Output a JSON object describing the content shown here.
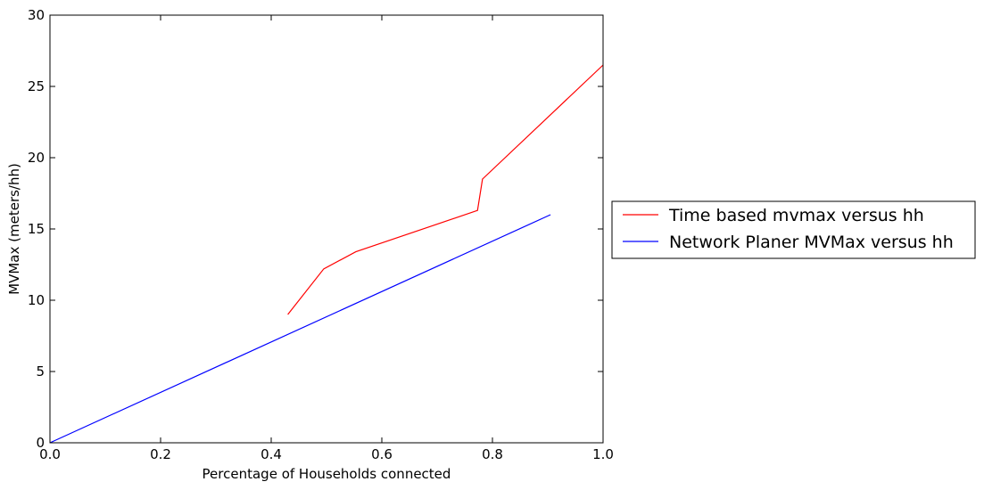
{
  "chart_data": {
    "type": "line",
    "title": "",
    "xlabel": "Percentage of Households connected",
    "ylabel": "MVMax (meters/hh)",
    "xlim": [
      0.0,
      1.0
    ],
    "ylim": [
      0,
      30
    ],
    "xticks": [
      0.0,
      0.2,
      0.4,
      0.6,
      0.8,
      1.0
    ],
    "xtick_labels": [
      "0.0",
      "0.2",
      "0.4",
      "0.6",
      "0.8",
      "1.0"
    ],
    "yticks": [
      0,
      5,
      10,
      15,
      20,
      25,
      30
    ],
    "ytick_labels": [
      "0",
      "5",
      "10",
      "15",
      "20",
      "25",
      "30"
    ],
    "grid": false,
    "legend_position": "outside-right",
    "series": [
      {
        "name": "Time based mvmax versus hh",
        "color": "#ff0000",
        "x": [
          0.43,
          0.495,
          0.553,
          0.773,
          0.782,
          1.0
        ],
        "y": [
          9.0,
          12.2,
          13.4,
          16.3,
          18.5,
          26.5
        ]
      },
      {
        "name": "Network Planer MVMax versus hh",
        "color": "#0000ff",
        "x": [
          0.0,
          0.905
        ],
        "y": [
          0.0,
          16.0
        ]
      }
    ]
  }
}
